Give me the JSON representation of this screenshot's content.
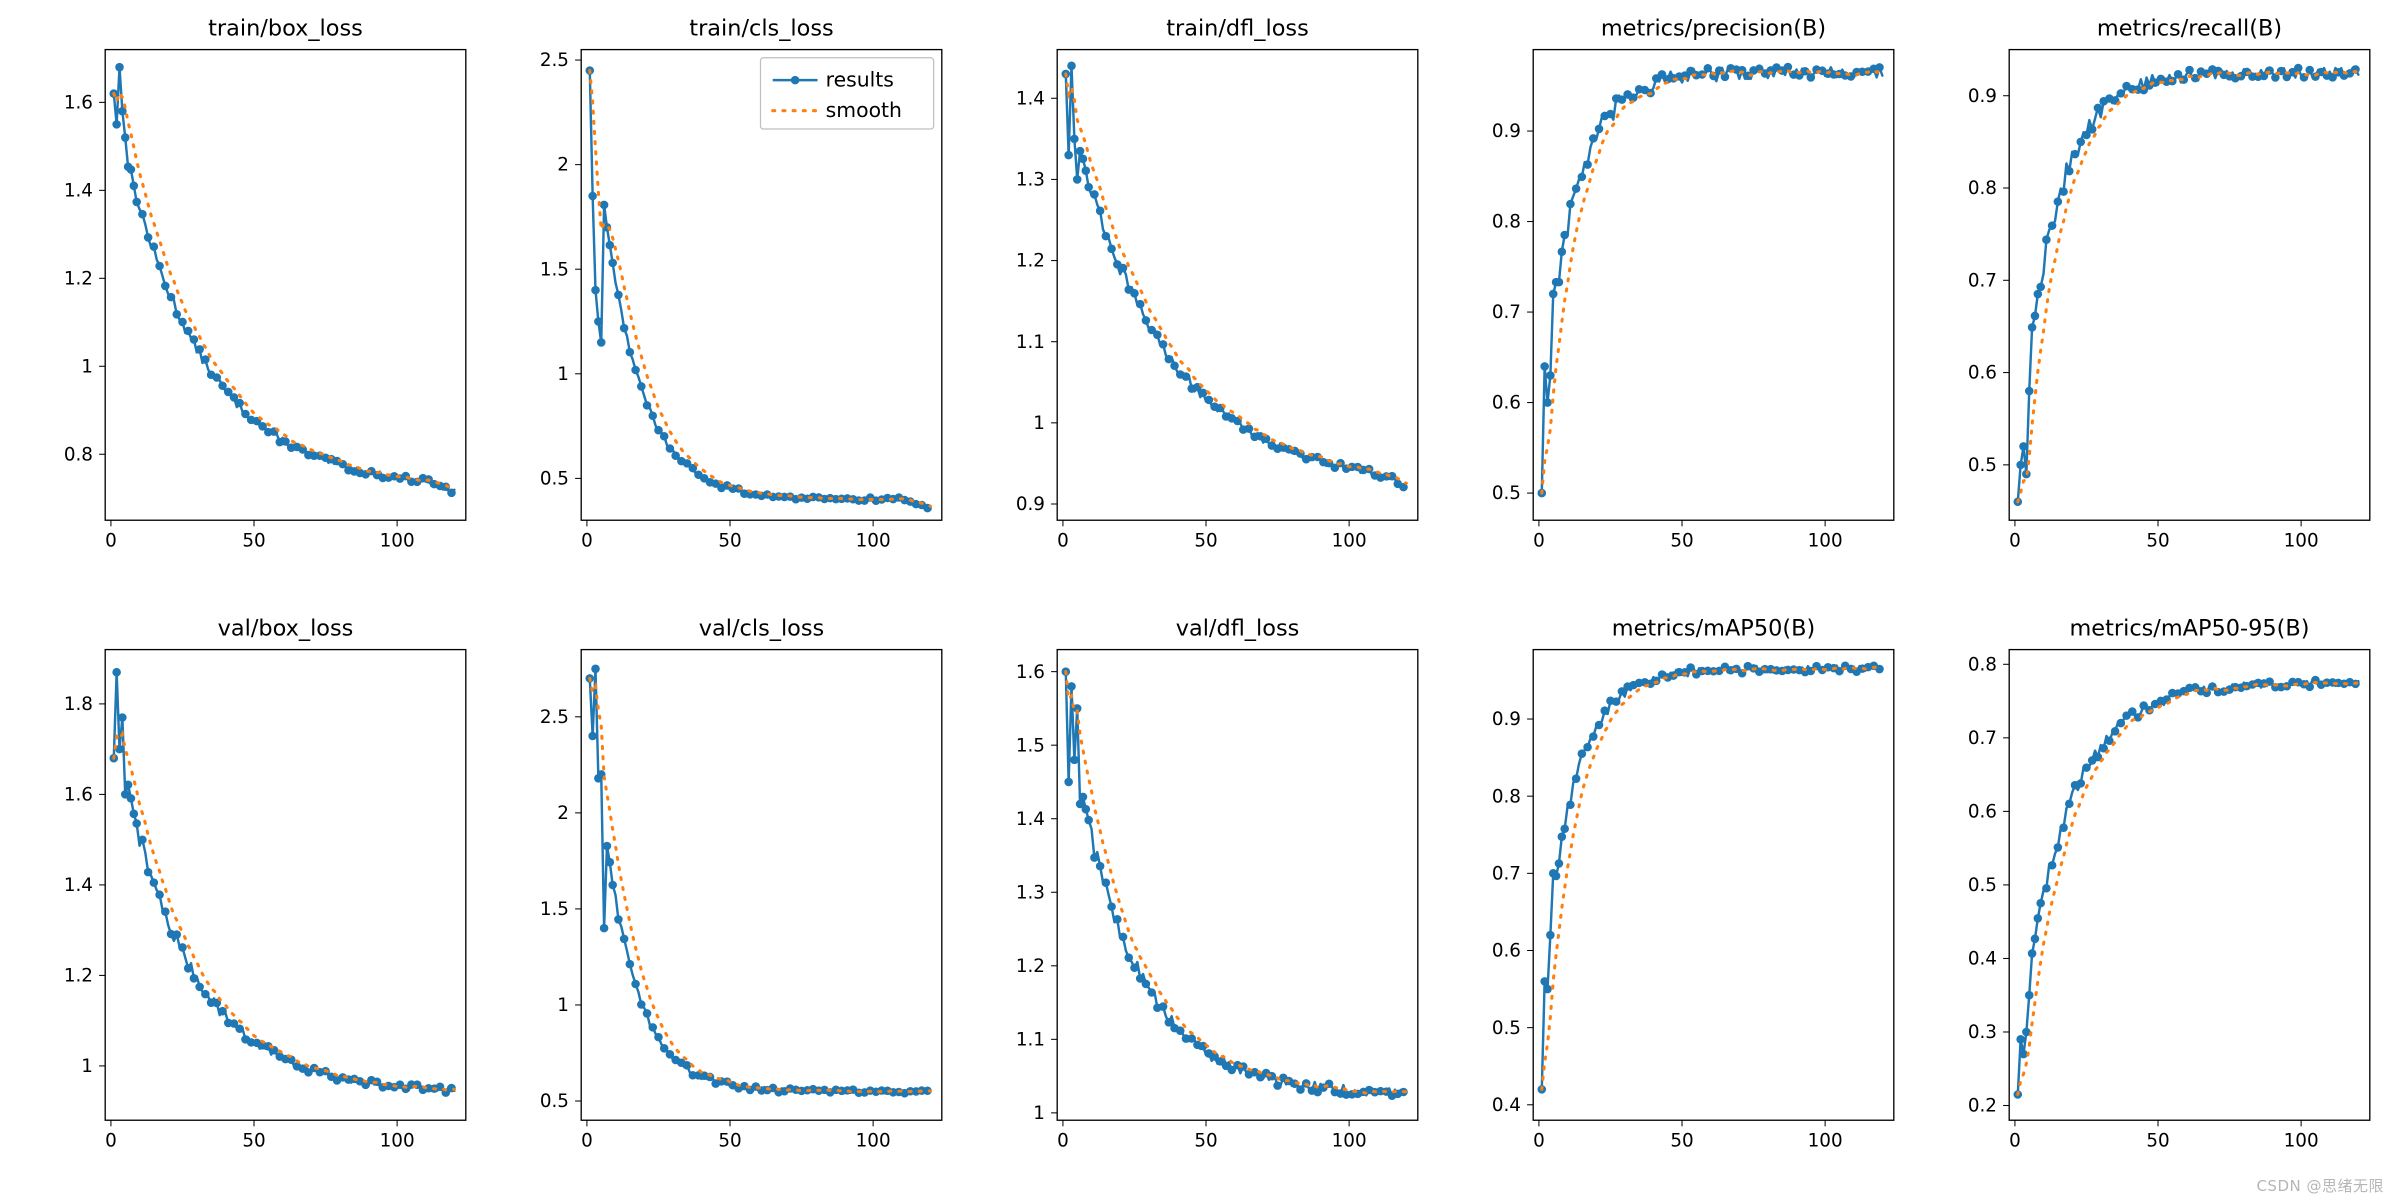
{
  "global": {
    "background_color": "#ffffff",
    "panel_border_color": "#000000",
    "panel_border_width": 1.3,
    "tick_length": 6,
    "tick_width": 1.0,
    "tick_color": "#000000",
    "tick_fontsize": 18,
    "title_fontsize": 22,
    "title_color": "#000000",
    "results_color": "#1f77b4",
    "results_line_width": 2.4,
    "results_marker_radius": 4.2,
    "smooth_color": "#ff7f0e",
    "smooth_line_width": 3.0,
    "smooth_dash": "2 8",
    "x_epochs": 120,
    "x_ticks": [
      0,
      50,
      100
    ],
    "watermark": "CSDN @思绪无限"
  },
  "legend": {
    "panel_index": 1,
    "items": [
      {
        "label": "results",
        "kind": "results"
      },
      {
        "label": "smooth",
        "kind": "smooth"
      }
    ],
    "fontsize": 20,
    "border_color": "#bfbfbf",
    "bg_color": "#ffffff"
  },
  "panels": [
    {
      "title": "train/box_loss",
      "ylim": [
        0.65,
        1.72
      ],
      "yticks": [
        0.8,
        1.0,
        1.2,
        1.4,
        1.6
      ],
      "curve": {
        "type": "decay",
        "y0": 1.6,
        "y1": 0.72,
        "k": 0.035,
        "init": [
          1.62,
          1.55,
          1.68,
          1.58,
          1.52
        ],
        "tail_drop": 0.02,
        "noise": 0.012
      }
    },
    {
      "title": "train/cls_loss",
      "ylim": [
        0.3,
        2.55
      ],
      "yticks": [
        0.5,
        1.0,
        1.5,
        2.0,
        2.5
      ],
      "curve": {
        "type": "decay",
        "y0": 2.45,
        "y1": 0.4,
        "k": 0.075,
        "init": [
          2.45,
          1.85,
          1.4,
          1.25,
          1.15
        ],
        "tail_drop": 0.04,
        "noise": 0.015
      }
    },
    {
      "title": "train/dfl_loss",
      "ylim": [
        0.88,
        1.46
      ],
      "yticks": [
        0.9,
        1.0,
        1.1,
        1.2,
        1.3,
        1.4
      ],
      "curve": {
        "type": "decay",
        "y0": 1.4,
        "y1": 0.92,
        "k": 0.03,
        "init": [
          1.43,
          1.33,
          1.44,
          1.35,
          1.3
        ],
        "tail_drop": 0.01,
        "noise": 0.008
      }
    },
    {
      "title": "metrics/precision(B)",
      "ylim": [
        0.47,
        0.99
      ],
      "yticks": [
        0.5,
        0.6,
        0.7,
        0.8,
        0.9
      ],
      "curve": {
        "type": "rise",
        "y0": 0.6,
        "y1": 0.965,
        "k": 0.085,
        "init": [
          0.5,
          0.64,
          0.6,
          0.63,
          0.72
        ],
        "noise": 0.012
      }
    },
    {
      "title": "metrics/recall(B)",
      "ylim": [
        0.44,
        0.95
      ],
      "yticks": [
        0.5,
        0.6,
        0.7,
        0.8,
        0.9
      ],
      "curve": {
        "type": "rise",
        "y0": 0.5,
        "y1": 0.925,
        "k": 0.08,
        "init": [
          0.46,
          0.5,
          0.52,
          0.49,
          0.58
        ],
        "noise": 0.01
      }
    },
    {
      "title": "val/box_loss",
      "ylim": [
        0.88,
        1.92
      ],
      "yticks": [
        1.0,
        1.2,
        1.4,
        1.6,
        1.8
      ],
      "curve": {
        "type": "decay",
        "y0": 1.75,
        "y1": 0.94,
        "k": 0.04,
        "init": [
          1.68,
          1.87,
          1.7,
          1.77,
          1.6
        ],
        "noise": 0.015
      }
    },
    {
      "title": "val/cls_loss",
      "ylim": [
        0.4,
        2.85
      ],
      "yticks": [
        0.5,
        1.0,
        1.5,
        2.0,
        2.5
      ],
      "curve": {
        "type": "decay",
        "y0": 2.7,
        "y1": 0.55,
        "k": 0.085,
        "init": [
          2.7,
          2.4,
          2.75,
          2.18,
          2.2,
          1.4
        ],
        "noise": 0.02
      }
    },
    {
      "title": "val/dfl_loss",
      "ylim": [
        0.99,
        1.63
      ],
      "yticks": [
        1.0,
        1.1,
        1.2,
        1.3,
        1.4,
        1.5,
        1.6
      ],
      "curve": {
        "type": "decay",
        "y0": 1.55,
        "y1": 1.025,
        "k": 0.045,
        "init": [
          1.6,
          1.45,
          1.58,
          1.48,
          1.55,
          1.42
        ],
        "noise": 0.012
      }
    },
    {
      "title": "metrics/mAP50(B)",
      "ylim": [
        0.38,
        0.99
      ],
      "yticks": [
        0.4,
        0.5,
        0.6,
        0.7,
        0.8,
        0.9
      ],
      "curve": {
        "type": "rise",
        "y0": 0.55,
        "y1": 0.965,
        "k": 0.09,
        "init": [
          0.42,
          0.56,
          0.55,
          0.62,
          0.7
        ],
        "noise": 0.008
      }
    },
    {
      "title": "metrics/mAP50-95(B)",
      "ylim": [
        0.18,
        0.82
      ],
      "yticks": [
        0.2,
        0.3,
        0.4,
        0.5,
        0.6,
        0.7,
        0.8
      ],
      "curve": {
        "type": "rise",
        "y0": 0.28,
        "y1": 0.775,
        "k": 0.06,
        "init": [
          0.215,
          0.29,
          0.27,
          0.3,
          0.35
        ],
        "noise": 0.01
      }
    }
  ]
}
